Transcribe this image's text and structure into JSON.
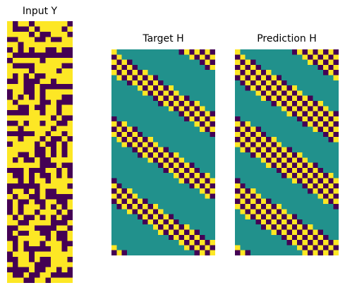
{
  "colors": {
    "low": "#440154",
    "mid": "#21918c",
    "high": "#fde725",
    "background": "#ffffff"
  },
  "chart_data": [
    {
      "type": "heatmap",
      "title": "Input Y",
      "rows": 50,
      "cols": 12,
      "value_levels": [
        -1,
        1
      ],
      "seed": 137,
      "colormap": "viridis",
      "axes": "off",
      "rows_sample": [
        "101101111110",
        "100010111101",
        "111101001110",
        "001110010011",
        "110111111111",
        "010101100100",
        "100000000000",
        "011111011111"
      ]
    },
    {
      "type": "heatmap",
      "title": "Target H",
      "rows": 40,
      "cols": 20,
      "value_levels": [
        -1,
        0,
        1
      ],
      "pattern": "diagonal band of checkerboard",
      "band_slope": 0.62,
      "band_period": 12.5,
      "band_width": 0.36,
      "colormap": "viridis",
      "axes": "off"
    },
    {
      "type": "heatmap",
      "title": "Prediction H",
      "rows": 40,
      "cols": 20,
      "value_levels": [
        -1,
        0,
        1
      ],
      "pattern": "diagonal band of checkerboard",
      "band_slope": 0.62,
      "band_period": 12.5,
      "band_width": 0.48,
      "colormap": "viridis",
      "axes": "off"
    }
  ]
}
